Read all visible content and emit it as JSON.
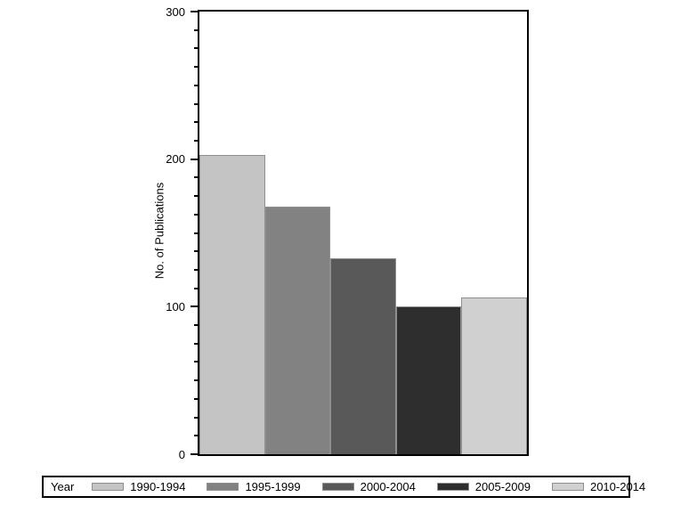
{
  "chart_data": {
    "type": "bar",
    "title": "",
    "xlabel": "",
    "ylabel": "No. of Publications",
    "ylim": [
      0,
      300
    ],
    "yticks": [
      0,
      100,
      200,
      300
    ],
    "ytick_labels": [
      "0",
      "100",
      "200",
      "300"
    ],
    "minor_tick_step": 12.5,
    "grid": false,
    "legend_position": "bottom",
    "legend_title": "Year",
    "categories": [
      "1990-1994",
      "1995-1999",
      "2000-2004",
      "2005-2009",
      "2010-2014"
    ],
    "values": [
      203,
      168,
      133,
      100,
      106
    ],
    "bar_colors": [
      "#c4c4c4",
      "#828282",
      "#595959",
      "#2e2e2e",
      "#d0d0d0"
    ],
    "bar_border_color": "#8f8f8f",
    "axis_color": "#000000",
    "background": "#ffffff"
  }
}
